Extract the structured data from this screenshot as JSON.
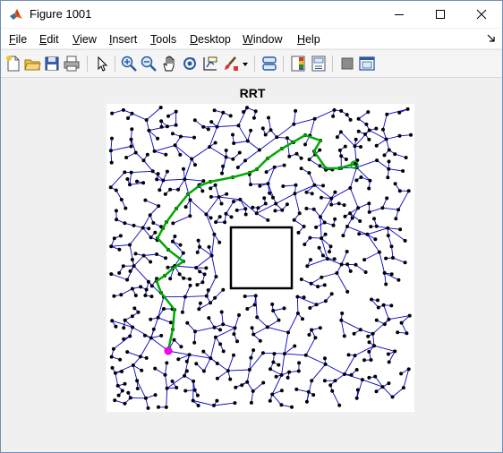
{
  "window": {
    "title": "Figure 1001",
    "controls": {
      "minimize": "─",
      "maximize": "☐",
      "close": "✕"
    }
  },
  "menu": {
    "items": [
      {
        "key": "F",
        "rest": "ile",
        "name": "menu-file"
      },
      {
        "key": "E",
        "rest": "dit",
        "name": "menu-edit"
      },
      {
        "key": "V",
        "rest": "iew",
        "name": "menu-view"
      },
      {
        "key": "I",
        "rest": "nsert",
        "name": "menu-insert"
      },
      {
        "key": "T",
        "rest": "ools",
        "name": "menu-tools"
      },
      {
        "key": "D",
        "rest": "esktop",
        "name": "menu-desktop"
      },
      {
        "key": "W",
        "rest": "indow",
        "name": "menu-window"
      },
      {
        "key": "H",
        "rest": "elp",
        "name": "menu-help"
      }
    ]
  },
  "toolbar": {
    "icons": [
      "new-figure-icon",
      "open-file-icon",
      "save-icon",
      "print-icon",
      "pointer-icon",
      "zoom-in-icon",
      "zoom-out-icon",
      "pan-icon",
      "rotate-3d-icon",
      "data-cursor-icon",
      "brush-icon",
      "brush-dropdown-icon",
      "link-plot-icon",
      "colorbar-icon",
      "legend-icon",
      "hide-plot-tools-icon",
      "show-plot-tools-icon"
    ]
  },
  "figure": {
    "title": "RRT",
    "colors": {
      "tree": "#0000cc",
      "node": "#000000",
      "path": "#00aa00",
      "start": "#ff00ff",
      "goal": "#00aa00",
      "obstacle": "#000000"
    }
  }
}
